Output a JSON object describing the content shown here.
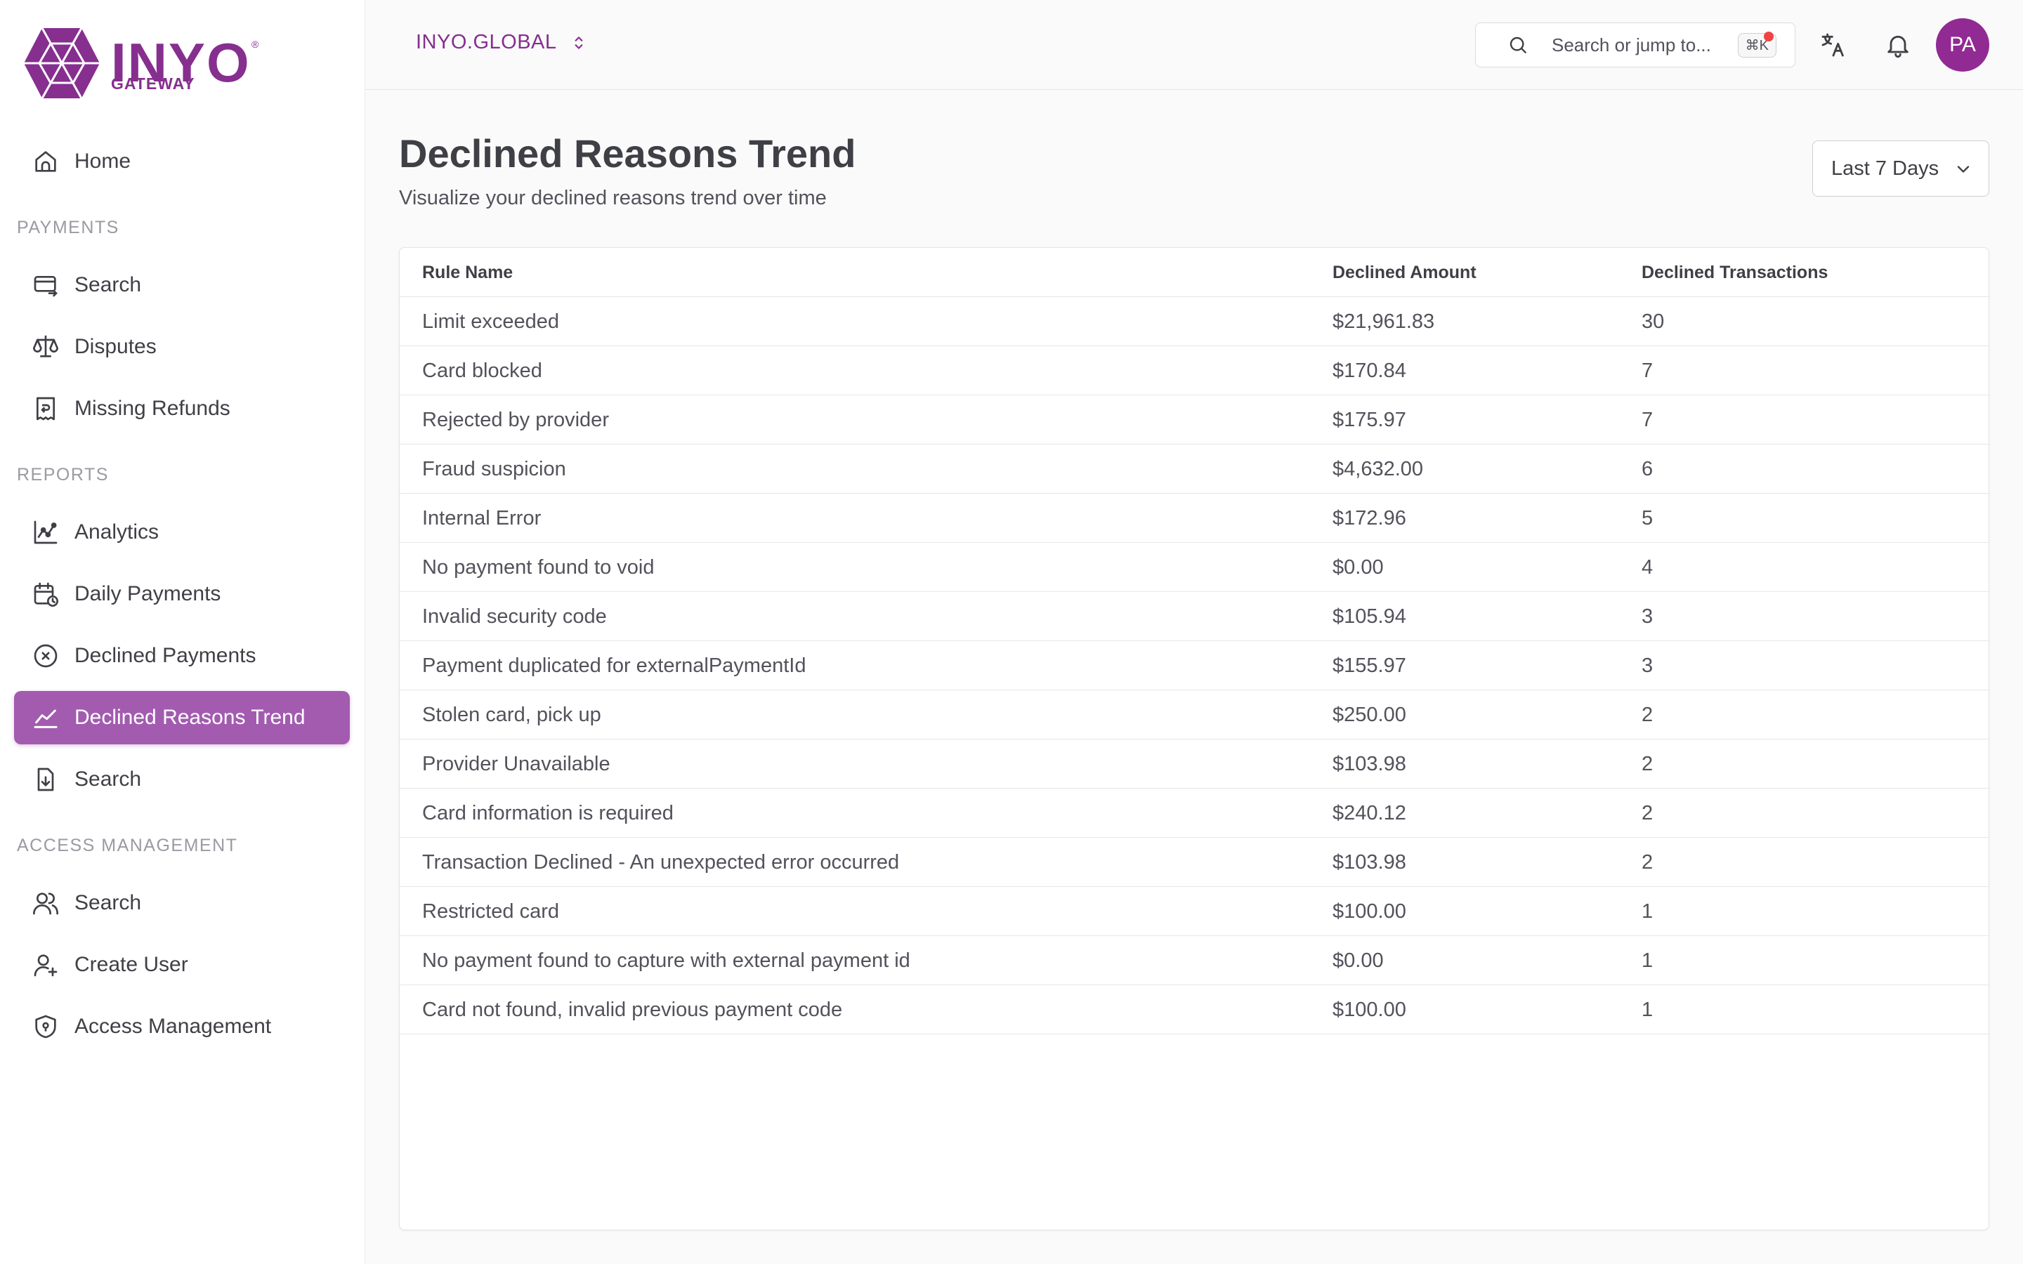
{
  "brand": {
    "name": "INYO",
    "sub": "GATEWAY",
    "reg": "®",
    "color": "#862f8f"
  },
  "sidebar": {
    "home": "Home",
    "sections": {
      "payments": "PAYMENTS",
      "reports": "REPORTS",
      "access": "ACCESS MANAGEMENT"
    },
    "payments_items": [
      {
        "label": "Search",
        "icon": "card-search-icon"
      },
      {
        "label": "Disputes",
        "icon": "scale-icon"
      },
      {
        "label": "Missing Refunds",
        "icon": "receipt-icon"
      }
    ],
    "reports_items": [
      {
        "label": "Analytics",
        "icon": "analytics-icon"
      },
      {
        "label": "Daily Payments",
        "icon": "calendar-clock-icon"
      },
      {
        "label": "Declined Payments",
        "icon": "x-circle-icon"
      },
      {
        "label": "Declined Reasons Trend",
        "icon": "trend-icon",
        "active": true
      },
      {
        "label": "Search",
        "icon": "file-download-icon"
      }
    ],
    "access_items": [
      {
        "label": "Search",
        "icon": "users-icon"
      },
      {
        "label": "Create User",
        "icon": "user-plus-icon"
      },
      {
        "label": "Access Management",
        "icon": "shield-icon"
      }
    ],
    "active_color": "#a35bb0"
  },
  "header": {
    "org": "INYO.GLOBAL",
    "search_placeholder": "Search or jump to...",
    "search_shortcut": "⌘K",
    "avatar_initials": "PA"
  },
  "main": {
    "title": "Declined Reasons Trend",
    "subtitle": "Visualize your declined reasons trend over time",
    "range": "Last 7 Days",
    "columns": [
      "Rule Name",
      "Declined Amount",
      "Declined Transactions"
    ],
    "rows": [
      [
        "Limit exceeded",
        "$21,961.83",
        "30"
      ],
      [
        "Card blocked",
        "$170.84",
        "7"
      ],
      [
        "Rejected by provider",
        "$175.97",
        "7"
      ],
      [
        "Fraud suspicion",
        "$4,632.00",
        "6"
      ],
      [
        "Internal Error",
        "$172.96",
        "5"
      ],
      [
        "No payment found to void",
        "$0.00",
        "4"
      ],
      [
        "Invalid security code",
        "$105.94",
        "3"
      ],
      [
        "Payment duplicated for externalPaymentId",
        "$155.97",
        "3"
      ],
      [
        "Stolen card, pick up",
        "$250.00",
        "2"
      ],
      [
        "Provider Unavailable",
        "$103.98",
        "2"
      ],
      [
        "Card information is required",
        "$240.12",
        "2"
      ],
      [
        "Transaction Declined - An unexpected error occurred",
        "$103.98",
        "2"
      ],
      [
        "Restricted card",
        "$100.00",
        "1"
      ],
      [
        "No payment found to capture with external payment id",
        "$0.00",
        "1"
      ],
      [
        "Card not found, invalid previous payment code",
        "$100.00",
        "1"
      ]
    ]
  }
}
